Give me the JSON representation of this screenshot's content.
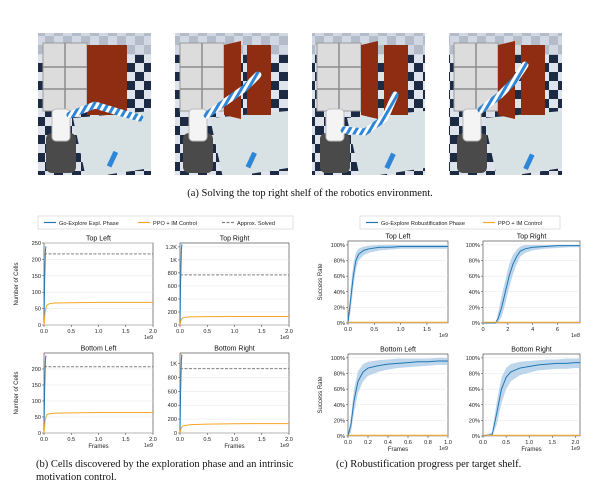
{
  "captions": {
    "a": "(a) Solving the top right shelf of the robotics environment.",
    "b": "(b) Cells discovered by the exploration phase and an intrinsic motivation control.",
    "c": "(c) Robustification progress per target shelf."
  },
  "colors": {
    "blue": "#1f77b4",
    "orange": "#f5a623",
    "gray": "#7f7f7f",
    "band": "#a8c8e6",
    "checker_dark": "#1c2a44",
    "checker_light": "#dfe4ec",
    "wood": "#8e2d12",
    "shelf": "#dcdcdc",
    "marble": "#d8e1e3"
  },
  "legend_b": [
    "Go-Explore Expl. Phase",
    "PPO + IM Control",
    "Approx. Solved"
  ],
  "legend_c": [
    "Go-Explore Robustification Phase",
    "PPO + IM Control"
  ],
  "chart_data": [
    {
      "id": "b-top-left",
      "type": "line",
      "title": "Top Left",
      "ylabel": "Number of Cells",
      "xlabel": "",
      "xlim": [
        0,
        2.0
      ],
      "ylim": [
        0,
        250
      ],
      "x_multiplier": "1e9",
      "xticks": [
        "0.0",
        "0.5",
        "1.0",
        "1.5",
        "2.0"
      ],
      "xtick_values": [
        0,
        0.5,
        1.0,
        1.5,
        2.0
      ],
      "yticks": [
        "0",
        "50",
        "100",
        "150",
        "200",
        "250"
      ],
      "ytick_values": [
        0,
        50,
        100,
        150,
        200,
        250
      ],
      "series": [
        {
          "name": "Go-Explore Expl. Phase",
          "x": [
            0,
            0.01,
            0.025,
            0.035
          ],
          "y": [
            0,
            120,
            225,
            240
          ]
        },
        {
          "name": "PPO + IM Control",
          "x": [
            0,
            0.02,
            0.05,
            0.1,
            0.2,
            0.5,
            1.0,
            1.5,
            2.0
          ],
          "y": [
            0,
            40,
            60,
            65,
            67,
            68,
            69,
            69,
            69
          ]
        },
        {
          "name": "Approx. Solved",
          "x": [
            0,
            2.0
          ],
          "y": [
            217,
            217
          ]
        }
      ]
    },
    {
      "id": "b-top-right",
      "type": "line",
      "title": "Top Right",
      "ylabel": "",
      "xlabel": "",
      "xlim": [
        0,
        2.0
      ],
      "ylim": [
        0,
        1260
      ],
      "x_multiplier": "1e9",
      "xticks": [
        "0.0",
        "0.5",
        "1.0",
        "1.5",
        "2.0"
      ],
      "xtick_values": [
        0,
        0.5,
        1.0,
        1.5,
        2.0
      ],
      "yticks": [
        "0",
        "200",
        "400",
        "600",
        "800",
        "1K",
        "1.2K"
      ],
      "ytick_values": [
        0,
        200,
        400,
        600,
        800,
        1000,
        1200
      ],
      "series": [
        {
          "name": "Go-Explore Expl. Phase",
          "x": [
            0,
            0.01,
            0.025,
            0.035
          ],
          "y": [
            0,
            600,
            1150,
            1240
          ]
        },
        {
          "name": "PPO + IM Control",
          "x": [
            0,
            0.02,
            0.05,
            0.1,
            0.2,
            0.5,
            1.0,
            1.5,
            2.0
          ],
          "y": [
            0,
            80,
            110,
            120,
            125,
            128,
            130,
            130,
            130
          ]
        },
        {
          "name": "Approx. Solved",
          "x": [
            0,
            2.0
          ],
          "y": [
            770,
            770
          ]
        }
      ]
    },
    {
      "id": "b-bottom-left",
      "type": "line",
      "title": "Bottom Left",
      "ylabel": "Number of Cells",
      "xlabel": "Frames",
      "xlim": [
        0,
        2.0
      ],
      "ylim": [
        0,
        250
      ],
      "x_multiplier": "1e9",
      "xticks": [
        "0.0",
        "0.5",
        "1.0",
        "1.5",
        "2.0"
      ],
      "xtick_values": [
        0,
        0.5,
        1.0,
        1.5,
        2.0
      ],
      "yticks": [
        "0",
        "50",
        "100",
        "150",
        "200"
      ],
      "ytick_values": [
        0,
        50,
        100,
        150,
        200
      ],
      "series": [
        {
          "name": "Go-Explore Expl. Phase",
          "x": [
            0,
            0.01,
            0.025,
            0.035
          ],
          "y": [
            0,
            120,
            225,
            242
          ]
        },
        {
          "name": "PPO + IM Control",
          "x": [
            0,
            0.02,
            0.05,
            0.1,
            0.2,
            0.5,
            1.0,
            1.5,
            2.0
          ],
          "y": [
            0,
            40,
            57,
            60,
            62,
            63,
            64,
            64,
            64
          ]
        },
        {
          "name": "Approx. Solved",
          "x": [
            0,
            2.0
          ],
          "y": [
            207,
            207
          ]
        }
      ]
    },
    {
      "id": "b-bottom-right",
      "type": "line",
      "title": "Bottom Right",
      "ylabel": "",
      "xlabel": "Frames",
      "xlim": [
        0,
        2.0
      ],
      "ylim": [
        0,
        1150
      ],
      "x_multiplier": "1e9",
      "xticks": [
        "0.0",
        "0.5",
        "1.0",
        "1.5",
        "2.0"
      ],
      "xtick_values": [
        0,
        0.5,
        1.0,
        1.5,
        2.0
      ],
      "yticks": [
        "0",
        "200",
        "400",
        "600",
        "800",
        "1K"
      ],
      "ytick_values": [
        0,
        200,
        400,
        600,
        800,
        1000
      ],
      "series": [
        {
          "name": "Go-Explore Expl. Phase",
          "x": [
            0,
            0.01,
            0.025,
            0.035
          ],
          "y": [
            0,
            550,
            1050,
            1130
          ]
        },
        {
          "name": "PPO + IM Control",
          "x": [
            0,
            0.02,
            0.05,
            0.1,
            0.2,
            0.5,
            1.0,
            1.5,
            2.0
          ],
          "y": [
            0,
            70,
            100,
            110,
            120,
            128,
            133,
            135,
            135
          ]
        },
        {
          "name": "Approx. Solved",
          "x": [
            0,
            2.0
          ],
          "y": [
            925,
            925
          ]
        }
      ]
    },
    {
      "id": "c-top-left",
      "type": "line",
      "title": "Top Left",
      "ylabel": "Success Rate",
      "xlabel": "",
      "xlim": [
        0,
        1.9
      ],
      "ylim": [
        0,
        1.05
      ],
      "x_multiplier": "1e9",
      "xticks": [
        "0.0",
        "0.5",
        "1.0",
        "1.5"
      ],
      "xtick_values": [
        0,
        0.5,
        1.0,
        1.5
      ],
      "yticks": [
        "0%",
        "20%",
        "40%",
        "60%",
        "80%",
        "100%"
      ],
      "ytick_values": [
        0,
        0.2,
        0.4,
        0.6,
        0.8,
        1.0
      ],
      "series": [
        {
          "name": "Go-Explore Robustification Phase",
          "x": [
            0,
            0.05,
            0.1,
            0.15,
            0.2,
            0.3,
            0.4,
            0.6,
            0.8,
            1.0,
            1.3,
            1.6,
            1.9
          ],
          "y": [
            0,
            0.3,
            0.6,
            0.8,
            0.88,
            0.93,
            0.95,
            0.97,
            0.97,
            0.98,
            0.98,
            0.98,
            0.98
          ],
          "lower": [
            0,
            0.15,
            0.45,
            0.68,
            0.8,
            0.87,
            0.9,
            0.93,
            0.94,
            0.95,
            0.95,
            0.95,
            0.95
          ],
          "upper": [
            0,
            0.45,
            0.75,
            0.9,
            0.95,
            0.98,
            0.99,
            1.0,
            1.0,
            1.0,
            1.0,
            1.0,
            1.0
          ]
        },
        {
          "name": "PPO + IM Control",
          "x": [
            0,
            1.9
          ],
          "y": [
            0.01,
            0.01
          ]
        }
      ]
    },
    {
      "id": "c-top-right",
      "type": "line",
      "title": "Top Right",
      "ylabel": "",
      "xlabel": "",
      "xlim": [
        0,
        7.8
      ],
      "ylim": [
        0,
        1.05
      ],
      "x_multiplier": "1e8",
      "xticks": [
        "0",
        "2",
        "4",
        "6"
      ],
      "xtick_values": [
        0,
        2,
        4,
        6
      ],
      "yticks": [
        "0%",
        "20%",
        "40%",
        "60%",
        "80%",
        "100%"
      ],
      "ytick_values": [
        0,
        0.2,
        0.4,
        0.6,
        0.8,
        1.0
      ],
      "series": [
        {
          "name": "Go-Explore Robustification Phase",
          "x": [
            0,
            1.0,
            1.2,
            1.5,
            1.8,
            2.1,
            2.4,
            2.7,
            3.0,
            3.4,
            4.0,
            5.0,
            6.0,
            7.0,
            7.8
          ],
          "y": [
            0,
            0,
            0.05,
            0.2,
            0.4,
            0.6,
            0.75,
            0.85,
            0.92,
            0.95,
            0.97,
            0.98,
            0.99,
            0.99,
            0.99
          ],
          "lower": [
            0,
            0,
            0.0,
            0.08,
            0.25,
            0.45,
            0.62,
            0.75,
            0.85,
            0.9,
            0.93,
            0.95,
            0.96,
            0.97,
            0.97
          ],
          "upper": [
            0,
            0,
            0.12,
            0.35,
            0.55,
            0.75,
            0.87,
            0.94,
            0.98,
            1.0,
            1.0,
            1.0,
            1.0,
            1.0,
            1.0
          ]
        },
        {
          "name": "PPO + IM Control",
          "x": [
            0,
            7.8
          ],
          "y": [
            0.01,
            0.01
          ]
        }
      ]
    },
    {
      "id": "c-bottom-left",
      "type": "line",
      "title": "Bottom Left",
      "ylabel": "Success Rate",
      "xlabel": "Frames",
      "xlim": [
        0,
        1.0
      ],
      "ylim": [
        0,
        1.05
      ],
      "x_multiplier": "1e9",
      "xticks": [
        "0.0",
        "0.2",
        "0.4",
        "0.6",
        "0.8",
        "1.0"
      ],
      "xtick_values": [
        0,
        0.2,
        0.4,
        0.6,
        0.8,
        1.0
      ],
      "yticks": [
        "0%",
        "20%",
        "40%",
        "60%",
        "80%",
        "100%"
      ],
      "ytick_values": [
        0,
        0.2,
        0.4,
        0.6,
        0.8,
        1.0
      ],
      "series": [
        {
          "name": "Go-Explore Robustification Phase",
          "x": [
            0,
            0.03,
            0.06,
            0.1,
            0.15,
            0.2,
            0.3,
            0.4,
            0.5,
            0.6,
            0.7,
            0.8,
            0.9,
            1.0
          ],
          "y": [
            0,
            0.15,
            0.45,
            0.7,
            0.82,
            0.87,
            0.9,
            0.92,
            0.93,
            0.94,
            0.95,
            0.95,
            0.96,
            0.96
          ],
          "lower": [
            0,
            0.05,
            0.3,
            0.55,
            0.7,
            0.77,
            0.82,
            0.85,
            0.87,
            0.88,
            0.89,
            0.9,
            0.91,
            0.91
          ],
          "upper": [
            0,
            0.25,
            0.6,
            0.83,
            0.92,
            0.95,
            0.97,
            0.98,
            0.99,
            0.99,
            0.99,
            0.99,
            1.0,
            1.0
          ]
        },
        {
          "name": "PPO + IM Control",
          "x": [
            0,
            1.0
          ],
          "y": [
            0.01,
            0.01
          ]
        }
      ]
    },
    {
      "id": "c-bottom-right",
      "type": "line",
      "title": "Bottom Right",
      "ylabel": "",
      "xlabel": "Frames",
      "xlim": [
        0,
        2.1
      ],
      "ylim": [
        0,
        1.05
      ],
      "x_multiplier": "1e9",
      "xticks": [
        "0.0",
        "0.5",
        "1.0",
        "1.5",
        "2.0"
      ],
      "xtick_values": [
        0,
        0.5,
        1.0,
        1.5,
        2.0
      ],
      "yticks": [
        "0%",
        "20%",
        "40%",
        "60%",
        "80%",
        "100%"
      ],
      "ytick_values": [
        0,
        0.2,
        0.4,
        0.6,
        0.8,
        1.0
      ],
      "series": [
        {
          "name": "Go-Explore Robustification Phase",
          "x": [
            0,
            0.2,
            0.3,
            0.4,
            0.5,
            0.6,
            0.8,
            1.0,
            1.2,
            1.4,
            1.6,
            1.8,
            2.0,
            2.1
          ],
          "y": [
            0,
            0.02,
            0.3,
            0.6,
            0.75,
            0.82,
            0.87,
            0.89,
            0.91,
            0.92,
            0.93,
            0.93,
            0.94,
            0.94
          ],
          "lower": [
            0,
            0,
            0.15,
            0.42,
            0.6,
            0.7,
            0.78,
            0.81,
            0.84,
            0.85,
            0.86,
            0.86,
            0.87,
            0.87
          ],
          "upper": [
            0,
            0.05,
            0.45,
            0.75,
            0.87,
            0.92,
            0.95,
            0.96,
            0.97,
            0.98,
            0.98,
            0.99,
            0.99,
            0.99
          ]
        },
        {
          "name": "PPO + IM Control",
          "x": [
            0,
            2.1
          ],
          "y": [
            0.01,
            0.01
          ]
        }
      ]
    }
  ]
}
